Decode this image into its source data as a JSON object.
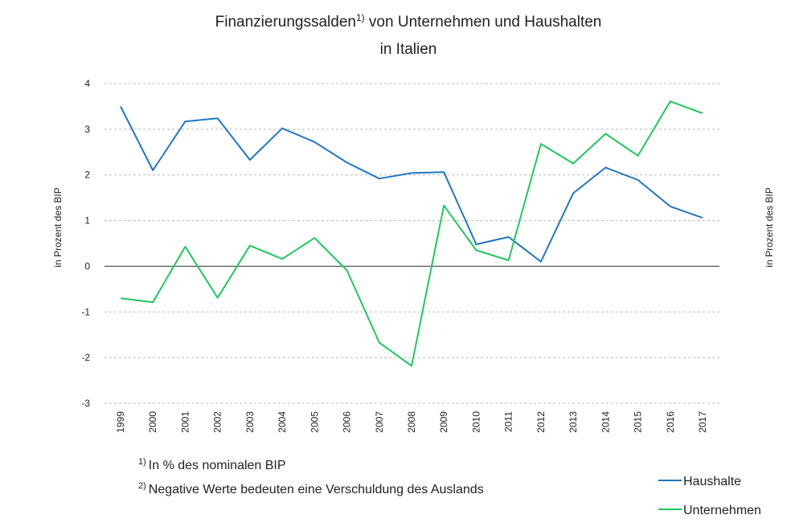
{
  "chart_data": {
    "type": "line",
    "title_line1": "Finanzierungssalden",
    "title_sup": "1)",
    "title_line1_rest": " von Unternehmen und Haushalten",
    "title_line2": "in Italien",
    "ylabel": "in Prozent des BIP",
    "ylabel_right": "in Prozent des BIP",
    "ylim": [
      -3,
      4
    ],
    "yticks": [
      "4",
      "3",
      "2",
      "1",
      "0",
      "-1",
      "-2",
      "-3"
    ],
    "yticks_values": [
      4,
      3,
      2,
      1,
      0,
      -1,
      -2,
      -3
    ],
    "x": [
      "1999",
      "2000",
      "2001",
      "2002",
      "2003",
      "2004",
      "2005",
      "2006",
      "2007",
      "2008",
      "2009",
      "2010",
      "2011",
      "2012",
      "2013",
      "2014",
      "2015",
      "2016",
      "2017"
    ],
    "series": [
      {
        "name": "Haushalte",
        "color": "#1f77c4",
        "values": [
          3.5,
          2.1,
          3.17,
          3.24,
          2.33,
          3.02,
          2.72,
          2.27,
          1.92,
          2.04,
          2.06,
          0.48,
          0.64,
          0.1,
          1.6,
          2.16,
          1.89,
          1.31,
          1.06
        ]
      },
      {
        "name": "Unternehmen",
        "color": "#1ec95c",
        "values": [
          -0.7,
          -0.79,
          0.43,
          -0.69,
          0.45,
          0.16,
          0.62,
          -0.09,
          -1.67,
          -2.18,
          1.33,
          0.35,
          0.13,
          2.68,
          2.25,
          2.9,
          2.42,
          3.61,
          3.35
        ]
      }
    ],
    "notes": [
      {
        "sup": "1)",
        "text": "In % des nominalen BIP"
      },
      {
        "sup": "2)",
        "text": "Negative Werte bedeuten eine Verschuldung des Auslands"
      }
    ],
    "legend_position": "bottom-right",
    "grid": true
  }
}
